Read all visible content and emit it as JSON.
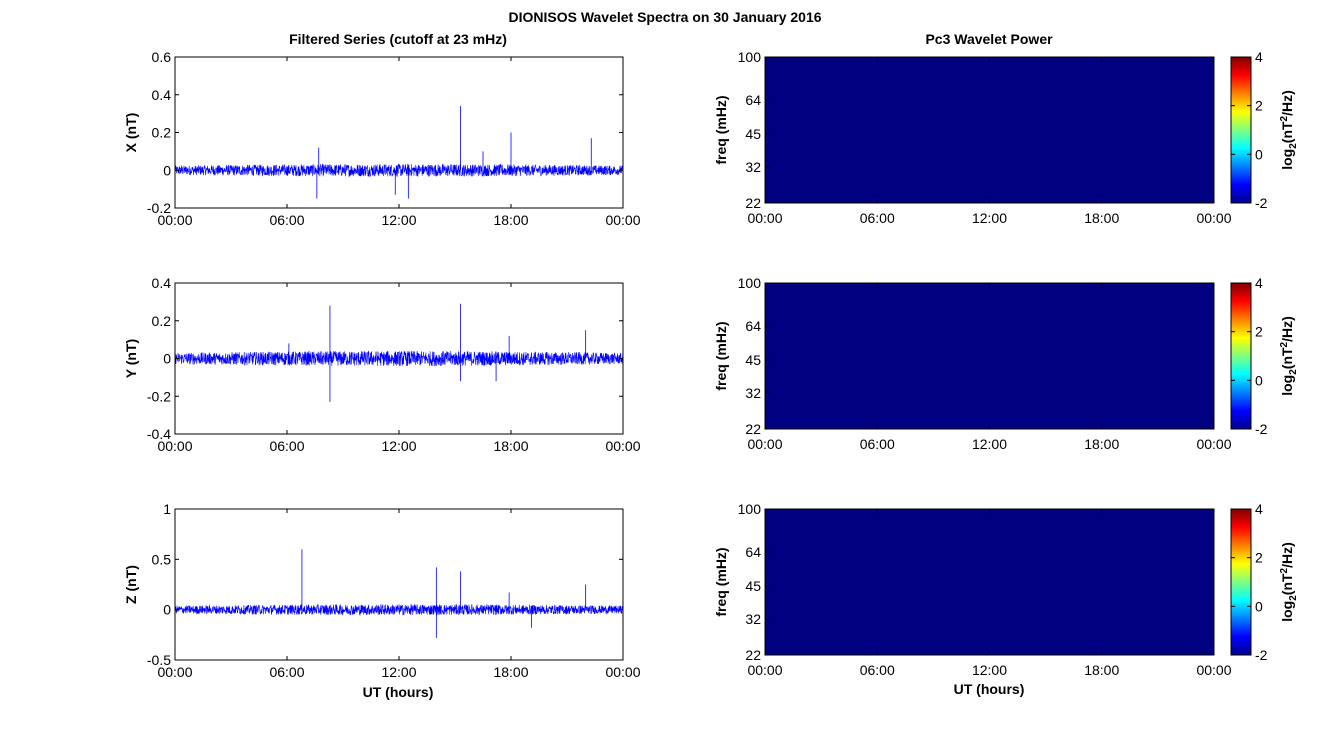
{
  "figure": {
    "title": "DIONISOS Wavelet Spectra on 30 January 2016",
    "left_title": "Filtered Series (cutoff at 23 mHz)",
    "right_title": "Pc3 Wavelet Power",
    "xlabel": "UT (hours)",
    "colorbar_label": "log2(nT2/Hz)"
  },
  "chart_data": [
    {
      "type": "line",
      "ylabel": "X (nT)",
      "xticks": [
        "00:00",
        "06:00",
        "12:00",
        "18:00",
        "00:00"
      ],
      "xlim": [
        0,
        24
      ],
      "ylim": [
        -0.2,
        0.6
      ],
      "yticks": [
        "-0.2",
        "0",
        "0.2",
        "0.4",
        "0.6"
      ],
      "ytick_values": [
        -0.2,
        0,
        0.2,
        0.4,
        0.6
      ],
      "noise_amplitude": 0.025,
      "spikes": [
        {
          "x": 15.3,
          "y": 0.34
        },
        {
          "x": 18.0,
          "y": 0.2
        },
        {
          "x": 22.3,
          "y": 0.17
        },
        {
          "x": 7.7,
          "y": 0.12
        },
        {
          "x": 7.6,
          "y": -0.15
        },
        {
          "x": 11.8,
          "y": -0.13
        },
        {
          "x": 12.5,
          "y": -0.15
        },
        {
          "x": 16.5,
          "y": 0.1
        }
      ],
      "color": "#0000ff"
    },
    {
      "type": "line",
      "ylabel": "Y (nT)",
      "xticks": [
        "00:00",
        "06:00",
        "12:00",
        "18:00",
        "00:00"
      ],
      "xlim": [
        0,
        24
      ],
      "ylim": [
        -0.4,
        0.4
      ],
      "yticks": [
        "-0.4",
        "-0.2",
        "0",
        "0.2",
        "0.4"
      ],
      "ytick_values": [
        -0.4,
        -0.2,
        0,
        0.2,
        0.4
      ],
      "noise_amplitude": 0.03,
      "spikes": [
        {
          "x": 8.3,
          "y": 0.28
        },
        {
          "x": 8.3,
          "y": -0.23
        },
        {
          "x": 15.3,
          "y": 0.29
        },
        {
          "x": 15.3,
          "y": -0.12
        },
        {
          "x": 17.2,
          "y": -0.12
        },
        {
          "x": 17.9,
          "y": 0.12
        },
        {
          "x": 22.0,
          "y": 0.15
        },
        {
          "x": 6.1,
          "y": 0.08
        }
      ],
      "color": "#0000ff"
    },
    {
      "type": "line",
      "ylabel": "Z (nT)",
      "xticks": [
        "00:00",
        "06:00",
        "12:00",
        "18:00",
        "00:00"
      ],
      "xlim": [
        0,
        24
      ],
      "ylim": [
        -0.5,
        1
      ],
      "yticks": [
        "-0.5",
        "0",
        "0.5",
        "1"
      ],
      "ytick_values": [
        -0.5,
        0,
        0.5,
        1
      ],
      "noise_amplitude": 0.04,
      "spikes": [
        {
          "x": 6.8,
          "y": 0.6
        },
        {
          "x": 14.0,
          "y": 0.42
        },
        {
          "x": 14.0,
          "y": -0.28
        },
        {
          "x": 15.3,
          "y": 0.38
        },
        {
          "x": 22.0,
          "y": 0.25
        },
        {
          "x": 17.9,
          "y": 0.17
        },
        {
          "x": 19.1,
          "y": -0.18
        }
      ],
      "color": "#0000ff"
    },
    {
      "type": "heatmap",
      "ylabel": "freq (mHz)",
      "xticks": [
        "00:00",
        "06:00",
        "12:00",
        "18:00",
        "00:00"
      ],
      "yticks": [
        "22",
        "32",
        "45",
        "64",
        "100"
      ],
      "ytick_values": [
        22,
        32,
        45,
        64,
        100
      ],
      "ylim": [
        22,
        100
      ],
      "y_scale": "log",
      "value": -2,
      "colorbar": {
        "ticks": [
          "-2",
          "0",
          "2",
          "4"
        ],
        "tick_values": [
          -2,
          0,
          2,
          4
        ],
        "range": [
          -2,
          4
        ]
      }
    },
    {
      "type": "heatmap",
      "ylabel": "freq (mHz)",
      "xticks": [
        "00:00",
        "06:00",
        "12:00",
        "18:00",
        "00:00"
      ],
      "yticks": [
        "22",
        "32",
        "45",
        "64",
        "100"
      ],
      "ytick_values": [
        22,
        32,
        45,
        64,
        100
      ],
      "ylim": [
        22,
        100
      ],
      "y_scale": "log",
      "value": -2,
      "colorbar": {
        "ticks": [
          "-2",
          "0",
          "2",
          "4"
        ],
        "tick_values": [
          -2,
          0,
          2,
          4
        ],
        "range": [
          -2,
          4
        ]
      }
    },
    {
      "type": "heatmap",
      "ylabel": "freq (mHz)",
      "xticks": [
        "00:00",
        "06:00",
        "12:00",
        "18:00",
        "00:00"
      ],
      "yticks": [
        "22",
        "32",
        "45",
        "64",
        "100"
      ],
      "ytick_values": [
        22,
        32,
        45,
        64,
        100
      ],
      "ylim": [
        22,
        100
      ],
      "y_scale": "log",
      "value": -2,
      "colorbar": {
        "ticks": [
          "-2",
          "0",
          "2",
          "4"
        ],
        "tick_values": [
          -2,
          0,
          2,
          4
        ],
        "range": [
          -2,
          4
        ]
      }
    }
  ],
  "colors": {
    "trace": "#0000ff",
    "heat_low": "#000080",
    "axis": "#000000"
  }
}
